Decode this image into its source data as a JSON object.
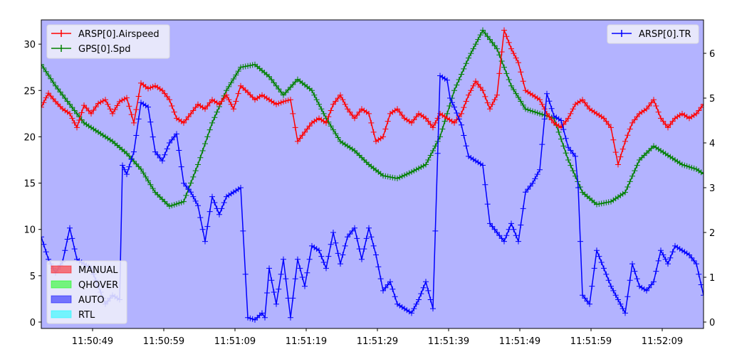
{
  "chart_data": {
    "type": "line",
    "title": "",
    "xlabel": "",
    "ylabel_left": "",
    "ylabel_right": "",
    "background_color": "#b3b3ff",
    "grid": false,
    "x_ticks": [
      "11:50:49",
      "11:50:59",
      "11:51:09",
      "11:51:19",
      "11:51:29",
      "11:51:39",
      "11:51:49",
      "11:51:59",
      "11:52:09"
    ],
    "x_range": [
      "11:50:41.8",
      "11:52:14.8"
    ],
    "y_left_ticks": [
      0,
      5,
      10,
      15,
      20,
      25,
      30
    ],
    "y_left_range": [
      -0.6,
      32.5
    ],
    "y_right_ticks": [
      0,
      1,
      2,
      3,
      4,
      5,
      6
    ],
    "y_right_range": [
      -0.12,
      6.75
    ],
    "legend_top_left": [
      {
        "label": "ARSP[0].Airspeed",
        "color": "#ff0000",
        "marker": "+"
      },
      {
        "label": "GPS[0].Spd",
        "color": "#008000",
        "marker": "+"
      }
    ],
    "legend_top_right": [
      {
        "label": "ARSP[0].TR",
        "color": "#0000ff",
        "marker": "+"
      }
    ],
    "legend_bottom_left": [
      {
        "label": "MANUAL",
        "color": "#ff0000",
        "alpha": 0.5
      },
      {
        "label": "QHOVER",
        "color": "#00ff00",
        "alpha": 0.5
      },
      {
        "label": "AUTO",
        "color": "#0000ff",
        "alpha": 0.5
      },
      {
        "label": "RTL",
        "color": "#00ffff",
        "alpha": 0.5
      }
    ],
    "series": [
      {
        "name": "ARSP[0].Airspeed",
        "axis": "left",
        "color": "#ff0000",
        "x_seconds_from_11_50_41_8": [
          0,
          1,
          2,
          3,
          4,
          5,
          6,
          7,
          8,
          9,
          10,
          11,
          12,
          13,
          14,
          15,
          16,
          17,
          18,
          19,
          20,
          21,
          22,
          23,
          24,
          25,
          26,
          27,
          28,
          29,
          30,
          31,
          32,
          33,
          34,
          35,
          36,
          37,
          38,
          39,
          40,
          41,
          42,
          43,
          44,
          45,
          46,
          47,
          48,
          49,
          50,
          51,
          52,
          53,
          54,
          55,
          56,
          57,
          58,
          59,
          60,
          61,
          62,
          63,
          64,
          65,
          66,
          67,
          68,
          69,
          70,
          71,
          72,
          73,
          74,
          75,
          76,
          77,
          78,
          79,
          80,
          81,
          82,
          83,
          84,
          85,
          86,
          87,
          88,
          89,
          90,
          91,
          92,
          93
        ],
        "values": [
          23.2,
          24.7,
          23.8,
          23.0,
          22.5,
          21.0,
          23.4,
          22.5,
          23.6,
          24.0,
          22.5,
          23.8,
          24.2,
          21.5,
          25.8,
          25.2,
          25.5,
          25.0,
          24.0,
          22.0,
          21.5,
          22.5,
          23.5,
          23.0,
          24.0,
          23.5,
          24.5,
          23.0,
          25.5,
          24.8,
          24.0,
          24.5,
          24.0,
          23.5,
          23.8,
          24.0,
          19.5,
          20.5,
          21.5,
          22.0,
          21.5,
          23.5,
          24.5,
          23.0,
          22.0,
          23.0,
          22.5,
          19.5,
          20.0,
          22.5,
          23.0,
          22.0,
          21.5,
          22.5,
          22.0,
          21.0,
          22.5,
          22.0,
          21.5,
          22.5,
          24.5,
          26.0,
          25.0,
          23.0,
          24.5,
          31.5,
          29.5,
          28.0,
          25.0,
          24.5,
          24.0,
          22.5,
          21.5,
          21.0,
          22.0,
          23.5,
          24.0,
          23.0,
          22.5,
          22.0,
          21.0,
          17.0,
          19.5,
          21.5,
          22.5,
          23.0,
          24.0,
          22.0,
          21.0,
          22.0,
          22.5,
          22.0,
          22.5,
          23.5
        ]
      },
      {
        "name": "GPS[0].Spd",
        "axis": "left",
        "color": "#008000",
        "x_seconds_from_11_50_41_8": [
          0,
          2,
          4,
          6,
          8,
          10,
          12,
          14,
          16,
          18,
          20,
          22,
          24,
          26,
          28,
          30,
          32,
          34,
          36,
          38,
          40,
          42,
          44,
          46,
          48,
          50,
          52,
          54,
          56,
          58,
          60,
          62,
          64,
          66,
          68,
          70,
          72,
          74,
          76,
          78,
          80,
          82,
          84,
          86,
          88,
          90,
          92,
          93
        ],
        "values": [
          27.8,
          25.5,
          23.5,
          21.5,
          20.5,
          19.5,
          18.2,
          16.5,
          14.0,
          12.5,
          13.0,
          17.0,
          21.5,
          25.0,
          27.5,
          27.8,
          26.5,
          24.5,
          26.2,
          25.0,
          22.0,
          19.5,
          18.5,
          17.0,
          15.8,
          15.5,
          16.2,
          17.0,
          20.0,
          25.0,
          28.5,
          31.5,
          29.5,
          25.5,
          23.0,
          22.5,
          22.0,
          17.5,
          14.0,
          12.7,
          13.0,
          14.0,
          17.5,
          19.0,
          18.0,
          17.0,
          16.5,
          16.0
        ]
      },
      {
        "name": "ARSP[0].TR",
        "axis": "right",
        "color": "#0000ff",
        "x_seconds_from_11_50_41_8": [
          0,
          1,
          2,
          3,
          4,
          5,
          6,
          7,
          8,
          9,
          10,
          11,
          11.4,
          12,
          13,
          14,
          15,
          16,
          17,
          18,
          19,
          20,
          21,
          22,
          23,
          24,
          25,
          26,
          27,
          28,
          29,
          30,
          31,
          31.4,
          32,
          33,
          34,
          35,
          36,
          37,
          38,
          39,
          40,
          41,
          42,
          43,
          44,
          45,
          46,
          47,
          48,
          49,
          50,
          51,
          52,
          53,
          54,
          55,
          56,
          57,
          57.4,
          58,
          59,
          60,
          61,
          62,
          63,
          64,
          65,
          66,
          67,
          68,
          69,
          70,
          71,
          72,
          73,
          74,
          75,
          75.4,
          76,
          77,
          78,
          79,
          80,
          81,
          82,
          83,
          84,
          85,
          86,
          87,
          88,
          89,
          90,
          91,
          92,
          93
        ],
        "values": [
          1.9,
          1.4,
          1.1,
          1.35,
          2.1,
          1.4,
          1.3,
          1.2,
          0.8,
          0.4,
          0.6,
          0.5,
          3.5,
          3.3,
          3.8,
          4.9,
          4.8,
          3.8,
          3.6,
          4.0,
          4.2,
          3.1,
          2.9,
          2.6,
          1.8,
          2.8,
          2.4,
          2.8,
          2.9,
          3.0,
          0.1,
          0.05,
          0.2,
          0.1,
          1.2,
          0.4,
          1.4,
          0.1,
          1.4,
          0.8,
          1.7,
          1.6,
          1.2,
          2.0,
          1.3,
          1.9,
          2.1,
          1.4,
          2.1,
          1.5,
          0.7,
          0.9,
          0.4,
          0.3,
          0.2,
          0.5,
          0.9,
          0.3,
          5.5,
          5.4,
          5.0,
          4.8,
          4.4,
          3.7,
          3.6,
          3.5,
          2.2,
          2.0,
          1.8,
          2.2,
          1.8,
          2.9,
          3.1,
          3.4,
          5.1,
          4.6,
          4.5,
          3.9,
          3.7,
          3.0,
          0.6,
          0.4,
          1.6,
          1.2,
          0.8,
          0.5,
          0.2,
          1.3,
          0.8,
          0.7,
          0.9,
          1.6,
          1.3,
          1.7,
          1.6,
          1.5,
          1.3,
          0.6
        ]
      }
    ]
  }
}
